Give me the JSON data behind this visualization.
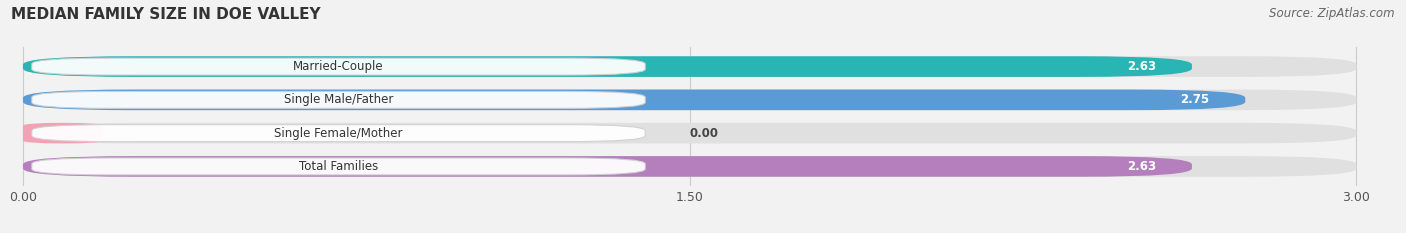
{
  "title": "MEDIAN FAMILY SIZE IN DOE VALLEY",
  "source": "Source: ZipAtlas.com",
  "categories": [
    "Married-Couple",
    "Single Male/Father",
    "Single Female/Mother",
    "Total Families"
  ],
  "values": [
    2.63,
    2.75,
    0.0,
    2.63
  ],
  "bar_colors": [
    "#2ab5b5",
    "#5b9bd5",
    "#f4a0b5",
    "#b57fbe"
  ],
  "xlim_data": [
    0.0,
    3.0
  ],
  "xtick_labels": [
    "0.00",
    "1.50",
    "3.00"
  ],
  "xtick_vals": [
    0.0,
    1.5,
    3.0
  ],
  "background_color": "#f2f2f2",
  "bar_bg_color": "#e0e0e0",
  "title_fontsize": 11,
  "label_fontsize": 8.5,
  "value_fontsize": 8.5,
  "source_fontsize": 8.5
}
